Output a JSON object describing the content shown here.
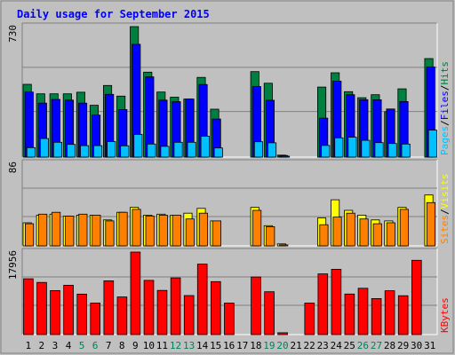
{
  "chart_data": [
    {
      "type": "bar",
      "title": "Daily usage for September 2015",
      "categories": [
        "1",
        "2",
        "3",
        "4",
        "5",
        "6",
        "7",
        "8",
        "9",
        "10",
        "11",
        "12",
        "13",
        "14",
        "15",
        "16",
        "17",
        "18",
        "19",
        "20",
        "21",
        "22",
        "23",
        "24",
        "25",
        "26",
        "27",
        "28",
        "29",
        "30",
        "31"
      ],
      "weekend_days": [
        "5",
        "6",
        "12",
        "13",
        "19",
        "20",
        "26",
        "27"
      ],
      "panel": "Pages / Files / Hits",
      "ylim": [
        0,
        730
      ],
      "y_max_label": "730",
      "side_labels": [
        "Pages",
        "/",
        "Files",
        "/",
        "Hits"
      ],
      "series": [
        {
          "name": "Hits",
          "color": "#008040",
          "values": [
            407,
            354,
            354,
            354,
            363,
            290,
            401,
            341,
            730,
            475,
            364,
            335,
            325,
            446,
            268,
            0,
            0,
            478,
            413,
            11,
            0,
            0,
            392,
            472,
            366,
            332,
            349,
            254,
            382,
            0,
            551
          ]
        },
        {
          "name": "Files",
          "color": "#0000ff",
          "values": [
            364,
            302,
            323,
            319,
            302,
            235,
            351,
            266,
            631,
            449,
            319,
            310,
            325,
            406,
            213,
            0,
            0,
            395,
            318,
            9,
            0,
            0,
            218,
            425,
            349,
            321,
            321,
            269,
            311,
            0,
            504
          ]
        },
        {
          "name": "Pages",
          "color": "#00c0ff",
          "values": [
            53,
            104,
            83,
            71,
            64,
            64,
            87,
            63,
            127,
            73,
            60,
            83,
            83,
            117,
            51,
            0,
            0,
            86,
            80,
            5,
            0,
            0,
            65,
            108,
            111,
            94,
            81,
            76,
            73,
            0,
            151
          ]
        }
      ]
    },
    {
      "type": "bar",
      "panel": "Sites / Visits",
      "ylim": [
        0,
        86
      ],
      "y_max_label": "86",
      "side_labels": [
        "Sites",
        "/",
        "Visits"
      ],
      "series": [
        {
          "name": "Visits",
          "color": "#ffff00",
          "values": [
            24,
            32,
            33,
            31,
            32,
            32,
            27,
            35,
            40,
            32,
            33,
            32,
            34,
            39,
            26,
            0,
            0,
            40,
            21,
            2,
            0,
            0,
            29,
            48,
            37,
            32,
            27,
            26,
            40,
            0,
            53
          ]
        },
        {
          "name": "Sites",
          "color": "#ff8000",
          "values": [
            23,
            33,
            35,
            31,
            33,
            32,
            26,
            35,
            38,
            31,
            32,
            32,
            28,
            34,
            26,
            0,
            0,
            37,
            20,
            1,
            0,
            0,
            22,
            30,
            34,
            28,
            23,
            24,
            38,
            0,
            45
          ]
        }
      ]
    },
    {
      "type": "bar",
      "panel": "KBytes",
      "ylim": [
        0,
        17956
      ],
      "y_max_label": "17956",
      "side_labels": [
        "KBytes"
      ],
      "series": [
        {
          "name": "KBytes",
          "color": "#ff0000",
          "values": [
            12140,
            11350,
            9580,
            10740,
            8810,
            6860,
            11710,
            8190,
            17956,
            11790,
            9610,
            12340,
            8500,
            15330,
            11520,
            6850,
            0,
            12540,
            9330,
            400,
            0,
            6850,
            13200,
            14210,
            8830,
            10080,
            7830,
            9540,
            8460,
            16170,
            0
          ]
        }
      ]
    }
  ],
  "day_labels": [
    "1",
    "2",
    "3",
    "4",
    "5",
    "6",
    "7",
    "8",
    "9",
    "10",
    "11",
    "12",
    "13",
    "14",
    "15",
    "16",
    "17",
    "18",
    "19",
    "20",
    "21",
    "22",
    "23",
    "24",
    "25",
    "26",
    "27",
    "28",
    "29",
    "30",
    "31"
  ],
  "colors": {
    "background": "#c0c0c0",
    "plot": "#ffffff",
    "title": "#0000ff",
    "weekday_label": "#000000",
    "weekend_label": "#00805c",
    "pages": "#00c0ff",
    "files": "#0000ff",
    "hits": "#008040",
    "sites": "#ff8000",
    "visits": "#ffff00",
    "kbytes": "#ff0000"
  }
}
